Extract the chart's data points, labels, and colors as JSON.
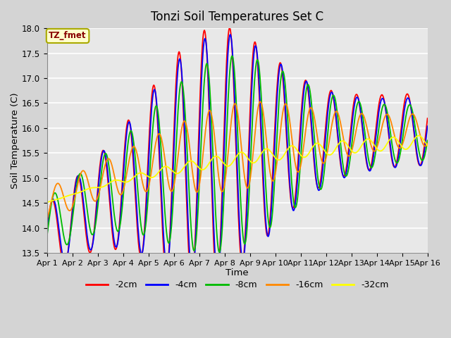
{
  "title": "Tonzi Soil Temperatures Set C",
  "xlabel": "Time",
  "ylabel": "Soil Temperature (C)",
  "ylim": [
    13.5,
    18.0
  ],
  "fig_bg_color": "#d4d4d4",
  "plot_bg_color": "#e8e8e8",
  "legend_label": "TZ_fmet",
  "series_labels": [
    "-2cm",
    "-4cm",
    "-8cm",
    "-16cm",
    "-32cm"
  ],
  "series_colors": [
    "#ff0000",
    "#0000ff",
    "#00bb00",
    "#ff8800",
    "#ffff00"
  ],
  "xtick_labels": [
    "Apr 1",
    "Apr 2",
    "Apr 3",
    "Apr 4",
    "Apr 5",
    "Apr 6",
    "Apr 7",
    "Apr 8",
    "Apr 9",
    "Apr 10",
    "Apr 11",
    "Apr 12",
    "Apr 13",
    "Apr 14",
    "Apr 15",
    "Apr 16"
  ],
  "ytick_values": [
    13.5,
    14.0,
    14.5,
    15.0,
    15.5,
    16.0,
    16.5,
    17.0,
    17.5,
    18.0
  ]
}
